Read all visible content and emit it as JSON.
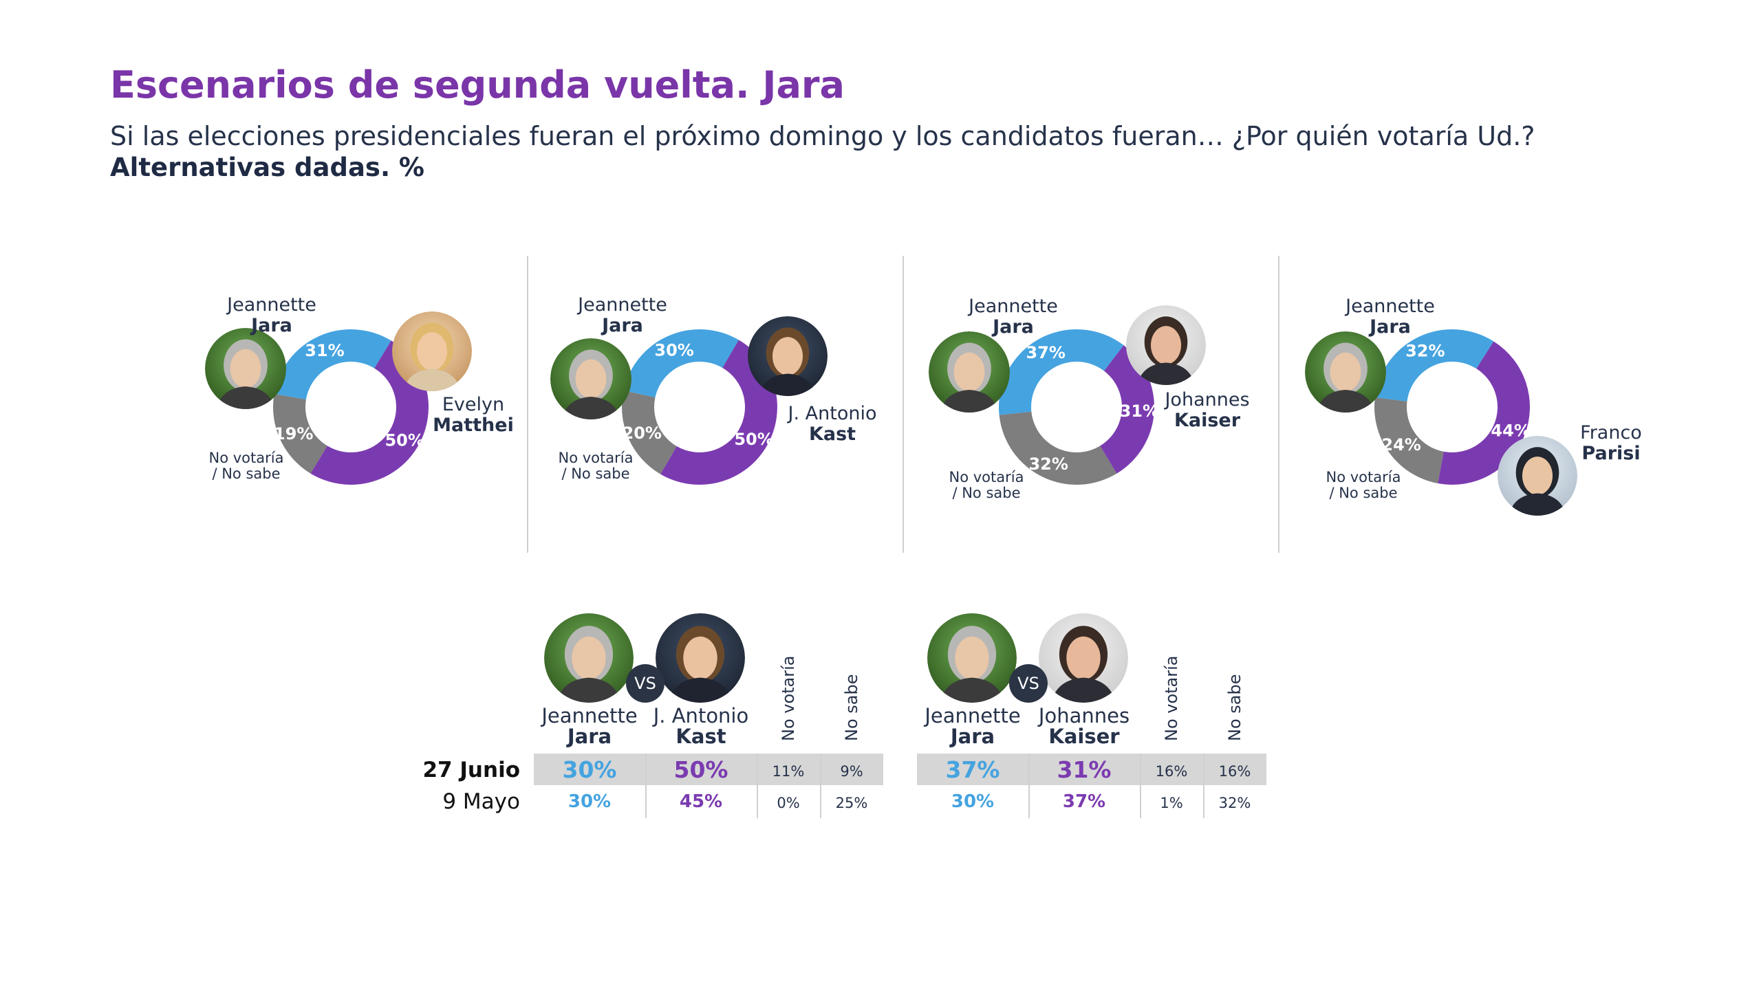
{
  "header": {
    "title": "Escenarios de segunda vuelta. Jara",
    "subtitle": "Si las elecciones presidenciales fueran el próximo domingo y los candidatos fueran… ¿Por quién votaría Ud.?",
    "subtitle2": "Alternativas dadas. %"
  },
  "colors": {
    "jara": "#45a3e0",
    "rival": "#7b3bb0",
    "none": "#7e7e7e",
    "title": "#7a35a8"
  },
  "panels": [
    {
      "left_first": "Jeannette",
      "left_last": "Jara",
      "right_first": "Evelyn",
      "right_last": "Matthei",
      "nv1": "No votaría",
      "nv2": "/ No sabe"
    },
    {
      "left_first": "Jeannette",
      "left_last": "Jara",
      "right_first": "J. Antonio",
      "right_last": "Kast",
      "nv1": "No votaría",
      "nv2": "/ No sabe"
    },
    {
      "left_first": "Jeannette",
      "left_last": "Jara",
      "right_first": "Johannes",
      "right_last": "Kaiser",
      "nv1": "No votaría",
      "nv2": "/ No sabe"
    },
    {
      "left_first": "Jeannette",
      "left_last": "Jara",
      "right_first": "Franco",
      "right_last": "Parisi",
      "nv1": "No votaría",
      "nv2": "/ No sabe"
    }
  ],
  "tables": [
    {
      "c1_first": "Jeannette",
      "c1_last": "Jara",
      "vs": "VS",
      "c2_first": "J. Antonio",
      "c2_last": "Kast",
      "h3": "No votaría",
      "h4": "No sabe",
      "rows": [
        {
          "label": "27 Junio",
          "jara": "30%",
          "rival": "50%",
          "nv": "11%",
          "ns": "9%"
        },
        {
          "label": "9 Mayo",
          "jara": "30%",
          "rival": "45%",
          "nv": "0%",
          "ns": "25%"
        }
      ]
    },
    {
      "c1_first": "Jeannette",
      "c1_last": "Jara",
      "vs": "VS",
      "c2_first": "Johannes",
      "c2_last": "Kaiser",
      "h3": "No votaría",
      "h4": "No sabe",
      "rows": [
        {
          "jara": "37%",
          "rival": "31%",
          "nv": "16%",
          "ns": "16%"
        },
        {
          "jara": "30%",
          "rival": "37%",
          "nv": "1%",
          "ns": "32%"
        }
      ]
    }
  ],
  "chart_data": [
    {
      "type": "pie",
      "series": [
        {
          "name": "Jeannette Jara",
          "value": 31
        },
        {
          "name": "Evelyn Matthei",
          "value": 50
        },
        {
          "name": "No votaría / No sabe",
          "value": 19
        }
      ],
      "labels": [
        "31%",
        "50%",
        "19%"
      ]
    },
    {
      "type": "pie",
      "series": [
        {
          "name": "Jeannette Jara",
          "value": 30
        },
        {
          "name": "J. Antonio Kast",
          "value": 50
        },
        {
          "name": "No votaría / No sabe",
          "value": 20
        }
      ],
      "labels": [
        "30%",
        "50%",
        "20%"
      ]
    },
    {
      "type": "pie",
      "series": [
        {
          "name": "Jeannette Jara",
          "value": 37
        },
        {
          "name": "Johannes Kaiser",
          "value": 31
        },
        {
          "name": "No votaría / No sabe",
          "value": 32
        }
      ],
      "labels": [
        "37%",
        "31%",
        "32%"
      ]
    },
    {
      "type": "pie",
      "series": [
        {
          "name": "Jeannette Jara",
          "value": 32
        },
        {
          "name": "Franco Parisi",
          "value": 44
        },
        {
          "name": "No votaría / No sabe",
          "value": 24
        }
      ],
      "labels": [
        "32%",
        "44%",
        "24%"
      ]
    }
  ]
}
